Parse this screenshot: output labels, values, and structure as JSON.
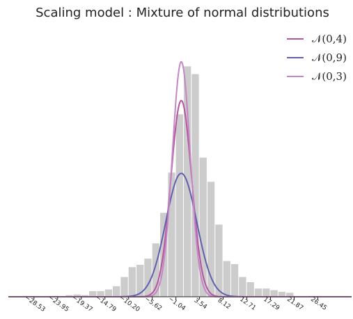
{
  "chart_data": {
    "type": "bar",
    "title": "Scaling model : Mixture of  normal distributions",
    "xlabel": "",
    "ylabel": "",
    "x_ticks": [
      "−28.53",
      "−23.95",
      "−19.37",
      "−14.79",
      "−10.20",
      "−5.62",
      "−1.04",
      "3.54",
      "8.12",
      "12.71",
      "17.29",
      "21.87",
      "26.45"
    ],
    "x_tick_values": [
      -28.53,
      -23.95,
      -19.37,
      -14.79,
      -10.2,
      -5.62,
      -1.04,
      3.54,
      8.12,
      12.71,
      17.29,
      21.87,
      26.45
    ],
    "xlim": [
      -33.5,
      33.0
    ],
    "ylim": [
      0,
      0.107
    ],
    "histogram": {
      "color": "#cccccc",
      "bin_width": 1.527,
      "bin_centers": [
        -21.66,
        -20.13,
        -18.6,
        -17.08,
        -15.55,
        -14.02,
        -12.5,
        -10.97,
        -9.44,
        -7.91,
        -6.39,
        -4.86,
        -3.33,
        -1.8,
        -0.28,
        1.25,
        2.78,
        4.3,
        5.83,
        7.36,
        8.89,
        10.41,
        11.94,
        13.47,
        14.99,
        16.52,
        18.05,
        19.57,
        21.1
      ],
      "densities": [
        0.0007,
        0.001,
        0.0007,
        0.0024,
        0.0024,
        0.0031,
        0.0045,
        0.0084,
        0.0126,
        0.0136,
        0.0162,
        0.0227,
        0.0357,
        0.0528,
        0.0776,
        0.098,
        0.0947,
        0.0592,
        0.0489,
        0.0307,
        0.0152,
        0.0139,
        0.0084,
        0.0062,
        0.0035,
        0.0035,
        0.0028,
        0.0021,
        0.0017
      ]
    },
    "series": [
      {
        "name": "𝒩(0,4)",
        "type": "line",
        "mean": 0,
        "variance": 4,
        "color": "#b5559e",
        "peak_density": 0.0835
      },
      {
        "name": "𝒩(0,9)",
        "type": "line",
        "mean": 0,
        "variance": 9,
        "color": "#5f5fae",
        "peak_density": 0.0525
      },
      {
        "name": "𝒩(0,3)",
        "type": "line",
        "mean": 0,
        "variance": 3,
        "color": "#c486c4",
        "peak_density": 0.1
      }
    ],
    "legend_position": "top-right",
    "grid": false
  }
}
